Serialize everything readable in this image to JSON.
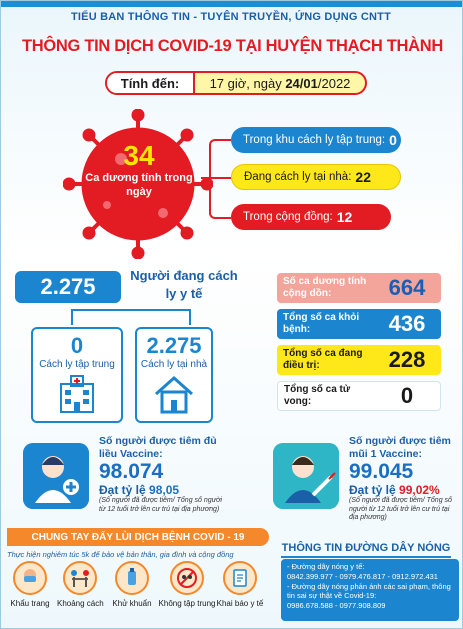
{
  "header": {
    "org": "TIỂU BAN THÔNG TIN - TUYÊN TRUYỀN, ỨNG DỤNG CNTT",
    "title": "THÔNG TIN DỊCH COVID-19 TẠI HUYỆN THẠCH THÀNH",
    "date_label": "Tính đến:",
    "date_prefix": "17 giờ, ngày ",
    "date_bold": "24/01",
    "date_suffix": "/2022"
  },
  "daily": {
    "number": "34",
    "label": "Ca dương tính trong ngày",
    "items": [
      {
        "label": "Trong khu cách ly tập trung:",
        "value": "0"
      },
      {
        "label": "Đang cách ly tại nhà:",
        "value": "22"
      },
      {
        "label": "Trong cộng đồng:",
        "value": "12"
      }
    ]
  },
  "isolation": {
    "total": "2.275",
    "label": "Người đang cách ly y tế",
    "centralized": {
      "value": "0",
      "label": "Cách ly tập trung"
    },
    "home": {
      "value": "2.275",
      "label": "Cách ly tại nhà"
    }
  },
  "stats": [
    {
      "label": "Số ca dương tính cộng dồn:",
      "value": "664"
    },
    {
      "label": "Tổng số ca khỏi bệnh:",
      "value": "436"
    },
    {
      "label": "Tổng số ca đang điều trị:",
      "value": "228"
    },
    {
      "label": "Tổng số ca tử vong:",
      "value": "0"
    }
  ],
  "vaccine_full": {
    "title": "Số người được tiêm đủ liều Vaccine:",
    "value": "98.074",
    "rate_label": "Đạt tỷ lệ",
    "rate": "98,05",
    "note": "(Số người đã được tiêm/ Tổng số người từ 12 tuổi trở lên cư trú tại địa phương)"
  },
  "vaccine_one": {
    "title": "Số người được tiêm mũi 1 Vaccine:",
    "value": "99.045",
    "rate_label": "Đạt tỷ lệ",
    "rate": "99,02%",
    "note": "(Số người đã được tiêm/ Tổng số người từ 12 tuổi trở lên cư trú tại địa phương)"
  },
  "campaign": {
    "banner": "CHUNG TAY ĐẨY LÙI DỊCH BỆNH COVID - 19",
    "tagline": "Thực hiện nghiêm túc 5k để bảo vệ bản thân, gia đình và cộng đồng",
    "measures": [
      "Khẩu trang",
      "Khoảng cách",
      "Khử khuẩn",
      "Không tập trung",
      "Khai báo y tế"
    ]
  },
  "hotline": {
    "title": "THÔNG TIN ĐƯỜNG DÂY NÓNG",
    "line1": "- Đường dây nóng y tế:",
    "line2": "0842.399.977 - 0979.476.817 - 0912.972.431",
    "line3": "- Đường dây nóng phản ánh các sai phạm, thông tin sai sự thật về Covid-19:",
    "line4": "0986.678.588 - 0977.908.809"
  },
  "colors": {
    "red": "#e31b23",
    "blue": "#1b86cf",
    "yellow": "#ffe81a",
    "orange": "#f4882a"
  }
}
